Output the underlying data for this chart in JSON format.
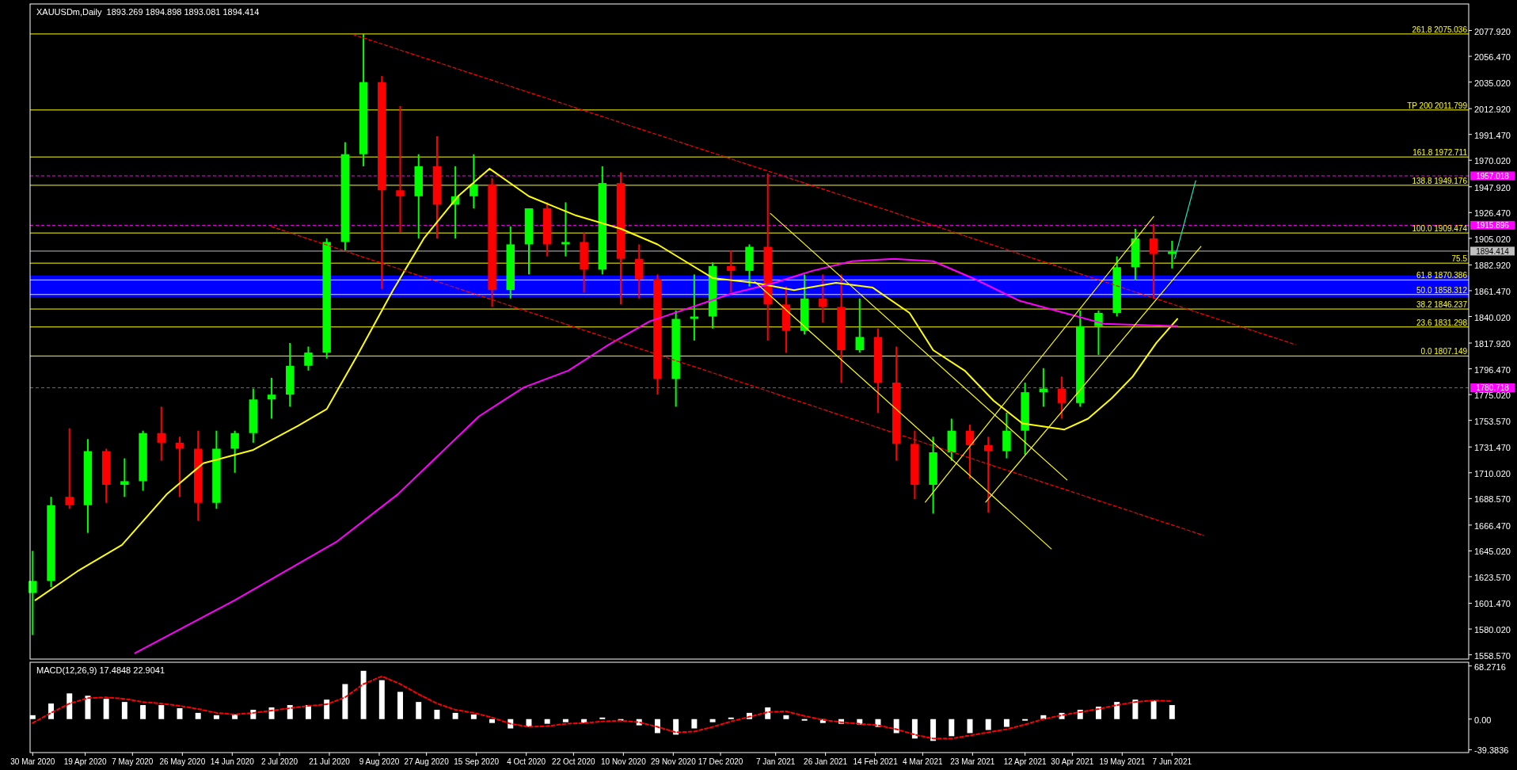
{
  "chart_data": [
    {
      "type": "candlestick",
      "title": "XAUUSDm,Daily  1893.269 1894.898 1893.081 1894.414",
      "x": [
        "2020-03-30",
        "2020-04-06",
        "2020-04-13",
        "2020-04-20",
        "2020-04-27",
        "2020-05-04",
        "2020-05-11",
        "2020-05-18",
        "2020-05-25",
        "2020-06-01",
        "2020-06-08",
        "2020-06-15",
        "2020-06-22",
        "2020-06-29",
        "2020-07-06",
        "2020-07-13",
        "2020-07-20",
        "2020-07-27",
        "2020-08-03",
        "2020-08-10",
        "2020-08-17",
        "2020-08-24",
        "2020-08-31",
        "2020-09-07",
        "2020-09-14",
        "2020-09-21",
        "2020-09-28",
        "2020-10-05",
        "2020-10-12",
        "2020-10-19",
        "2020-10-26",
        "2020-11-02",
        "2020-11-09",
        "2020-11-16",
        "2020-11-23",
        "2020-11-30",
        "2020-12-07",
        "2020-12-14",
        "2020-12-21",
        "2020-12-28",
        "2021-01-04",
        "2021-01-11",
        "2021-01-18",
        "2021-01-25",
        "2021-02-01",
        "2021-02-08",
        "2021-02-15",
        "2021-02-22",
        "2021-03-01",
        "2021-03-08",
        "2021-03-15",
        "2021-03-22",
        "2021-03-29",
        "2021-04-05",
        "2021-04-12",
        "2021-04-19",
        "2021-04-26",
        "2021-05-03",
        "2021-05-10",
        "2021-05-17",
        "2021-05-24",
        "2021-05-31",
        "2021-06-07"
      ],
      "ohlc": [
        [
          1610,
          1645,
          1575,
          1620
        ],
        [
          1620,
          1690,
          1615,
          1683
        ],
        [
          1690,
          1747,
          1680,
          1683
        ],
        [
          1683,
          1738,
          1660,
          1728
        ],
        [
          1728,
          1730,
          1685,
          1700
        ],
        [
          1700,
          1722,
          1690,
          1703
        ],
        [
          1703,
          1745,
          1695,
          1743
        ],
        [
          1743,
          1765,
          1720,
          1735
        ],
        [
          1735,
          1740,
          1690,
          1730
        ],
        [
          1730,
          1745,
          1670,
          1685
        ],
        [
          1685,
          1745,
          1680,
          1730
        ],
        [
          1730,
          1745,
          1710,
          1743
        ],
        [
          1743,
          1780,
          1735,
          1771
        ],
        [
          1771,
          1789,
          1755,
          1775
        ],
        [
          1775,
          1818,
          1765,
          1799
        ],
        [
          1799,
          1815,
          1795,
          1810
        ],
        [
          1810,
          1905,
          1805,
          1902
        ],
        [
          1902,
          1985,
          1895,
          1975
        ],
        [
          1975,
          2075,
          1965,
          2035
        ],
        [
          2035,
          2040,
          1863,
          1945
        ],
        [
          1945,
          2015,
          1910,
          1940
        ],
        [
          1940,
          1975,
          1905,
          1965
        ],
        [
          1965,
          1990,
          1905,
          1933
        ],
        [
          1933,
          1965,
          1905,
          1940
        ],
        [
          1940,
          1975,
          1930,
          1950
        ],
        [
          1950,
          1955,
          1848,
          1862
        ],
        [
          1862,
          1915,
          1855,
          1900
        ],
        [
          1900,
          1930,
          1875,
          1930
        ],
        [
          1930,
          1935,
          1890,
          1900
        ],
        [
          1900,
          1935,
          1890,
          1902
        ],
        [
          1902,
          1910,
          1860,
          1879
        ],
        [
          1879,
          1965,
          1875,
          1951
        ],
        [
          1951,
          1960,
          1850,
          1888
        ],
        [
          1888,
          1900,
          1855,
          1871
        ],
        [
          1871,
          1875,
          1775,
          1788
        ],
        [
          1788,
          1845,
          1765,
          1838
        ],
        [
          1838,
          1875,
          1820,
          1840
        ],
        [
          1840,
          1885,
          1830,
          1882
        ],
        [
          1882,
          1895,
          1860,
          1878
        ],
        [
          1878,
          1900,
          1865,
          1898
        ],
        [
          1898,
          1959,
          1820,
          1850
        ],
        [
          1850,
          1865,
          1810,
          1828
        ],
        [
          1828,
          1875,
          1825,
          1855
        ],
        [
          1855,
          1875,
          1835,
          1848
        ],
        [
          1848,
          1875,
          1785,
          1812
        ],
        [
          1812,
          1855,
          1810,
          1823
        ],
        [
          1823,
          1830,
          1760,
          1785
        ],
        [
          1785,
          1815,
          1720,
          1734
        ],
        [
          1734,
          1745,
          1688,
          1700
        ],
        [
          1700,
          1740,
          1676,
          1727
        ],
        [
          1727,
          1755,
          1720,
          1745
        ],
        [
          1745,
          1750,
          1705,
          1733
        ],
        [
          1733,
          1740,
          1677,
          1728
        ],
        [
          1728,
          1760,
          1722,
          1745
        ],
        [
          1745,
          1785,
          1725,
          1777
        ],
        [
          1777,
          1797,
          1765,
          1780
        ],
        [
          1780,
          1790,
          1755,
          1768
        ],
        [
          1768,
          1845,
          1765,
          1832
        ],
        [
          1832,
          1845,
          1808,
          1843
        ],
        [
          1843,
          1890,
          1840,
          1881
        ],
        [
          1881,
          1913,
          1870,
          1905
        ],
        [
          1905,
          1917,
          1855,
          1892
        ],
        [
          1892,
          1903,
          1880,
          1894
        ]
      ],
      "colors": [
        "#00ff00",
        "#00ff00",
        "#ff0000",
        "#00ff00",
        "#ff0000",
        "#00ff00",
        "#00ff00",
        "#ff0000",
        "#ff0000",
        "#ff0000",
        "#00ff00",
        "#00ff00",
        "#00ff00",
        "#00ff00",
        "#00ff00",
        "#00ff00",
        "#00ff00",
        "#00ff00",
        "#00ff00",
        "#ff0000",
        "#ff0000",
        "#00ff00",
        "#ff0000",
        "#00ff00",
        "#00ff00",
        "#ff0000",
        "#00ff00",
        "#00ff00",
        "#ff0000",
        "#00ff00",
        "#ff0000",
        "#00ff00",
        "#ff0000",
        "#ff0000",
        "#ff0000",
        "#00ff00",
        "#00ff00",
        "#00ff00",
        "#ff0000",
        "#00ff00",
        "#ff0000",
        "#ff0000",
        "#00ff00",
        "#ff0000",
        "#ff0000",
        "#00ff00",
        "#ff0000",
        "#ff0000",
        "#ff0000",
        "#00ff00",
        "#00ff00",
        "#ff0000",
        "#ff0000",
        "#00ff00",
        "#00ff00",
        "#00ff00",
        "#ff0000",
        "#00ff00",
        "#00ff00",
        "#00ff00",
        "#00ff00",
        "#ff0000",
        "#00ff00"
      ],
      "series": [
        {
          "type": "line",
          "color": "#ffff00",
          "x": [
            "2020-03-31",
            "2020-04-16",
            "2020-05-03",
            "2020-05-20",
            "2020-06-03",
            "2020-06-22",
            "2020-07-09",
            "2020-07-20",
            "2020-08-01",
            "2020-08-14",
            "2020-08-26",
            "2020-09-08",
            "2020-09-20",
            "2020-10-05",
            "2020-10-23",
            "2020-11-09",
            "2020-11-23",
            "2020-12-05",
            "2020-12-14",
            "2020-12-30",
            "2021-01-14",
            "2021-01-30",
            "2021-02-13",
            "2021-02-27",
            "2021-03-08",
            "2021-03-20",
            "2021-03-31",
            "2021-04-11",
            "2021-04-27",
            "2021-05-06",
            "2021-05-15",
            "2021-05-23",
            "2021-06-01",
            "2021-06-09"
          ],
          "values": [
            1604,
            1628,
            1650,
            1692,
            1718,
            1729,
            1749,
            1763,
            1809,
            1861,
            1905,
            1940,
            1963,
            1940,
            1924,
            1913,
            1900,
            1884,
            1872,
            1868,
            1862,
            1868,
            1864,
            1843,
            1812,
            1795,
            1770,
            1751,
            1746,
            1755,
            1772,
            1790,
            1818,
            1838
          ]
        },
        {
          "type": "line",
          "color": "#ff00ff",
          "x": [
            "2020-05-08",
            "2020-06-15",
            "2020-07-24",
            "2020-08-16",
            "2020-09-16",
            "2020-10-03",
            "2020-10-20",
            "2020-11-04",
            "2020-11-20",
            "2020-12-05",
            "2020-12-21",
            "2021-01-05",
            "2021-01-21",
            "2021-02-05",
            "2021-02-21",
            "2021-03-08",
            "2021-03-24",
            "2021-04-10",
            "2021-04-27",
            "2021-05-12",
            "2021-06-09"
          ],
          "values": [
            1560,
            1604,
            1653,
            1692,
            1757,
            1781,
            1795,
            1816,
            1836,
            1847,
            1859,
            1867,
            1878,
            1886,
            1888,
            1886,
            1871,
            1853,
            1843,
            1834,
            1832
          ]
        },
        {
          "type": "line",
          "color": "#ff0000",
          "line_style": "dashed",
          "x": [
            "2020-07-30",
            "2021-07-24"
          ],
          "values": [
            2074.6,
            1816.6
          ]
        },
        {
          "type": "line",
          "color": "#ff0000",
          "line_style": "dashed",
          "x": [
            "2020-06-29",
            "2021-06-19"
          ],
          "values": [
            1914.7,
            1657.9
          ]
        },
        {
          "type": "line",
          "color": "#ffff00",
          "x": [
            "2021-01-05",
            "2021-04-28"
          ],
          "values": [
            1925.8,
            1704
          ]
        },
        {
          "type": "line",
          "color": "#ffff00",
          "x": [
            "2020-12-30",
            "2021-04-22"
          ],
          "values": [
            1869,
            1646.7
          ]
        },
        {
          "type": "line",
          "color": "#ffff00",
          "x": [
            "2021-03-05",
            "2021-05-31"
          ],
          "values": [
            1685.6,
            1923.2
          ]
        },
        {
          "type": "line",
          "color": "#ffff00",
          "x": [
            "2021-03-28",
            "2021-06-18"
          ],
          "values": [
            1685.6,
            1898.2
          ]
        },
        {
          "type": "line",
          "color": "#1de9b6",
          "x": [
            "2021-06-08",
            "2021-06-16"
          ],
          "values": [
            1888,
            1953
          ]
        }
      ],
      "bands": [
        {
          "axis": "y",
          "from": 1856,
          "to": 1874,
          "color": "#0000ff"
        }
      ],
      "ref_lines": [
        {
          "axis": "y",
          "value": 1957.018,
          "label": "1957.018",
          "color": "#ff00ff",
          "line_style": "dashed"
        },
        {
          "axis": "y",
          "value": 1915.896,
          "label": "1915.896",
          "color": "#ff00ff",
          "line_style": "dashed"
        },
        {
          "axis": "y",
          "value": 1780.718,
          "label": "1780.718",
          "color": "#ff00ff",
          "line_style": "dashed"
        },
        {
          "axis": "y",
          "value": 1894.414,
          "label": "1894.414",
          "color": "#c0c0c0",
          "line_style": "solid"
        },
        {
          "axis": "y",
          "value": 2075.036,
          "label": "261.8 2075.036",
          "color": "#ffff00"
        },
        {
          "axis": "y",
          "value": 2011.799,
          "label": "TP 200 2011.799",
          "color": "#ffff00"
        },
        {
          "axis": "y",
          "value": 1972.711,
          "label": "161.8 1972.711",
          "color": "#ffff00"
        },
        {
          "axis": "y",
          "value": 1949.176,
          "label": "138.8 1949.176",
          "color": "#ffff00"
        },
        {
          "axis": "y",
          "value": 1909.474,
          "label": "100.0 1909.474",
          "color": "#ffff00"
        },
        {
          "axis": "y",
          "value": 1884.4,
          "color": "#ffff00"
        },
        {
          "axis": "y",
          "value": 1870.386,
          "label": "61.8 1870.386",
          "color": "#ffff00"
        },
        {
          "axis": "y",
          "value": 1858.312,
          "label": "50.0 1858.312",
          "color": "#ffff00"
        },
        {
          "axis": "y",
          "value": 1846.237,
          "label": "38.2 1846.237",
          "color": "#ffff00"
        },
        {
          "axis": "y",
          "value": 1831.298,
          "label": "23.6 1831.298",
          "color": "#ffff00"
        },
        {
          "axis": "y",
          "value": 1807.149,
          "label": "0.0 1807.149",
          "color": "#ffff00"
        }
      ],
      "annotations": [
        {
          "text": "75.5",
          "y": 1884.4
        }
      ],
      "xlim": [
        "2020-03-29",
        "2021-09-28"
      ],
      "ylim": [
        1555,
        2100
      ],
      "yticks": [
        {
          "value": 2077.92,
          "label": "2077.920"
        },
        {
          "value": 2056.47,
          "label": "2056.470"
        },
        {
          "value": 2035.02,
          "label": "2035.020"
        },
        {
          "value": 2012.92,
          "label": "2012.920"
        },
        {
          "value": 1991.47,
          "label": "1991.470"
        },
        {
          "value": 1970.02,
          "label": "1970.020"
        },
        {
          "value": 1947.92,
          "label": "1947.920"
        },
        {
          "value": 1926.47,
          "label": "1926.470"
        },
        {
          "value": 1905.02,
          "label": "1905.020"
        },
        {
          "value": 1882.92,
          "label": "1882.920"
        },
        {
          "value": 1861.47,
          "label": "1861.470"
        },
        {
          "value": 1840.02,
          "label": "1840.020"
        },
        {
          "value": 1817.92,
          "label": "1817.920"
        },
        {
          "value": 1796.47,
          "label": "1796.470"
        },
        {
          "value": 1775.02,
          "label": "1775.020"
        },
        {
          "value": 1753.57,
          "label": "1753.570"
        },
        {
          "value": 1731.47,
          "label": "1731.470"
        },
        {
          "value": 1710.02,
          "label": "1710.020"
        },
        {
          "value": 1688.57,
          "label": "1688.570"
        },
        {
          "value": 1666.47,
          "label": "1666.470"
        },
        {
          "value": 1645.02,
          "label": "1645.020"
        },
        {
          "value": 1623.57,
          "label": "1623.570"
        },
        {
          "value": 1601.47,
          "label": "1601.470"
        },
        {
          "value": 1580.02,
          "label": "1580.020"
        },
        {
          "value": 1558.57,
          "label": "1558.570"
        }
      ],
      "tick_labels": "y"
    },
    {
      "type": "bar",
      "title": "MACD(12,26,9) 17.4848 22.9041",
      "x": [
        "2020-03-30",
        "2020-04-06",
        "2020-04-13",
        "2020-04-20",
        "2020-04-27",
        "2020-05-04",
        "2020-05-11",
        "2020-05-18",
        "2020-05-25",
        "2020-06-01",
        "2020-06-08",
        "2020-06-15",
        "2020-06-22",
        "2020-06-29",
        "2020-07-06",
        "2020-07-13",
        "2020-07-20",
        "2020-07-27",
        "2020-08-03",
        "2020-08-10",
        "2020-08-17",
        "2020-08-24",
        "2020-08-31",
        "2020-09-07",
        "2020-09-14",
        "2020-09-21",
        "2020-09-28",
        "2020-10-05",
        "2020-10-12",
        "2020-10-19",
        "2020-10-26",
        "2020-11-02",
        "2020-11-09",
        "2020-11-16",
        "2020-11-23",
        "2020-11-30",
        "2020-12-07",
        "2020-12-14",
        "2020-12-21",
        "2020-12-28",
        "2021-01-04",
        "2021-01-11",
        "2021-01-18",
        "2021-01-25",
        "2021-02-01",
        "2021-02-08",
        "2021-02-15",
        "2021-02-22",
        "2021-03-01",
        "2021-03-08",
        "2021-03-15",
        "2021-03-22",
        "2021-03-29",
        "2021-04-05",
        "2021-04-12",
        "2021-04-19",
        "2021-04-26",
        "2021-05-03",
        "2021-05-10",
        "2021-05-17",
        "2021-05-24",
        "2021-05-31",
        "2021-06-07"
      ],
      "series": [
        {
          "type": "bar",
          "color": "#ffffff",
          "values": [
            5,
            20,
            33,
            30,
            26,
            22,
            18,
            18,
            14,
            8,
            5,
            6,
            12,
            15,
            18,
            18,
            25,
            45,
            62,
            50,
            35,
            22,
            12,
            8,
            6,
            -5,
            -12,
            -10,
            -6,
            -4,
            -5,
            2,
            -2,
            -8,
            -18,
            -20,
            -12,
            -4,
            2,
            8,
            15,
            5,
            -2,
            -5,
            -6,
            -7,
            -10,
            -18,
            -25,
            -28,
            -22,
            -18,
            -14,
            -10,
            -2,
            5,
            8,
            12,
            16,
            22,
            25,
            24,
            18
          ]
        },
        {
          "type": "line",
          "color": "#ff0000",
          "line_style": "dashed",
          "values": [
            -5,
            8,
            20,
            27,
            28,
            26,
            22,
            20,
            17,
            13,
            8,
            6,
            8,
            11,
            14,
            17,
            19,
            28,
            45,
            55,
            45,
            32,
            20,
            12,
            8,
            2,
            -6,
            -10,
            -9,
            -6,
            -5,
            -3,
            -2,
            -4,
            -10,
            -17,
            -16,
            -10,
            -3,
            3,
            9,
            10,
            4,
            -1,
            -4,
            -6,
            -8,
            -13,
            -20,
            -25,
            -25,
            -21,
            -17,
            -13,
            -7,
            0,
            5,
            9,
            13,
            18,
            22,
            24,
            23
          ]
        }
      ],
      "xlim": [
        "2020-03-29",
        "2021-09-28"
      ],
      "xticks": [
        {
          "value": "2020-03-30",
          "label": "30 Mar 2020"
        },
        {
          "value": "2020-04-19",
          "label": "19 Apr 2020"
        },
        {
          "value": "2020-05-07",
          "label": "7 May 2020"
        },
        {
          "value": "2020-05-26",
          "label": "26 May 2020"
        },
        {
          "value": "2020-06-14",
          "label": "14 Jun 2020"
        },
        {
          "value": "2020-07-02",
          "label": "2 Jul 2020"
        },
        {
          "value": "2020-07-21",
          "label": "21 Jul 2020"
        },
        {
          "value": "2020-08-09",
          "label": "9 Aug 2020"
        },
        {
          "value": "2020-08-27",
          "label": "27 Aug 2020"
        },
        {
          "value": "2020-09-15",
          "label": "15 Sep 2020"
        },
        {
          "value": "2020-10-04",
          "label": "4 Oct 2020"
        },
        {
          "value": "2020-10-22",
          "label": "22 Oct 2020"
        },
        {
          "value": "2020-11-10",
          "label": "10 Nov 2020"
        },
        {
          "value": "2020-11-29",
          "label": "29 Nov 2020"
        },
        {
          "value": "2020-12-17",
          "label": "17 Dec 2020"
        },
        {
          "value": "2021-01-07",
          "label": "7 Jan 2021"
        },
        {
          "value": "2021-01-26",
          "label": "26 Jan 2021"
        },
        {
          "value": "2021-02-14",
          "label": "14 Feb 2021"
        },
        {
          "value": "2021-03-04",
          "label": "4 Mar 2021"
        },
        {
          "value": "2021-03-23",
          "label": "23 Mar 2021"
        },
        {
          "value": "2021-04-12",
          "label": "12 Apr 2021"
        },
        {
          "value": "2021-04-30",
          "label": "30 Apr 2021"
        },
        {
          "value": "2021-05-19",
          "label": "19 May 2021"
        },
        {
          "value": "2021-06-07",
          "label": "7 Jun 2021"
        }
      ],
      "ylim": [
        -43,
        73
      ],
      "yticks": [
        {
          "value": 68.2716,
          "label": "68.2716"
        },
        {
          "value": 0,
          "label": "0.00"
        },
        {
          "value": -39.3836,
          "label": "-39.3836"
        }
      ]
    }
  ]
}
